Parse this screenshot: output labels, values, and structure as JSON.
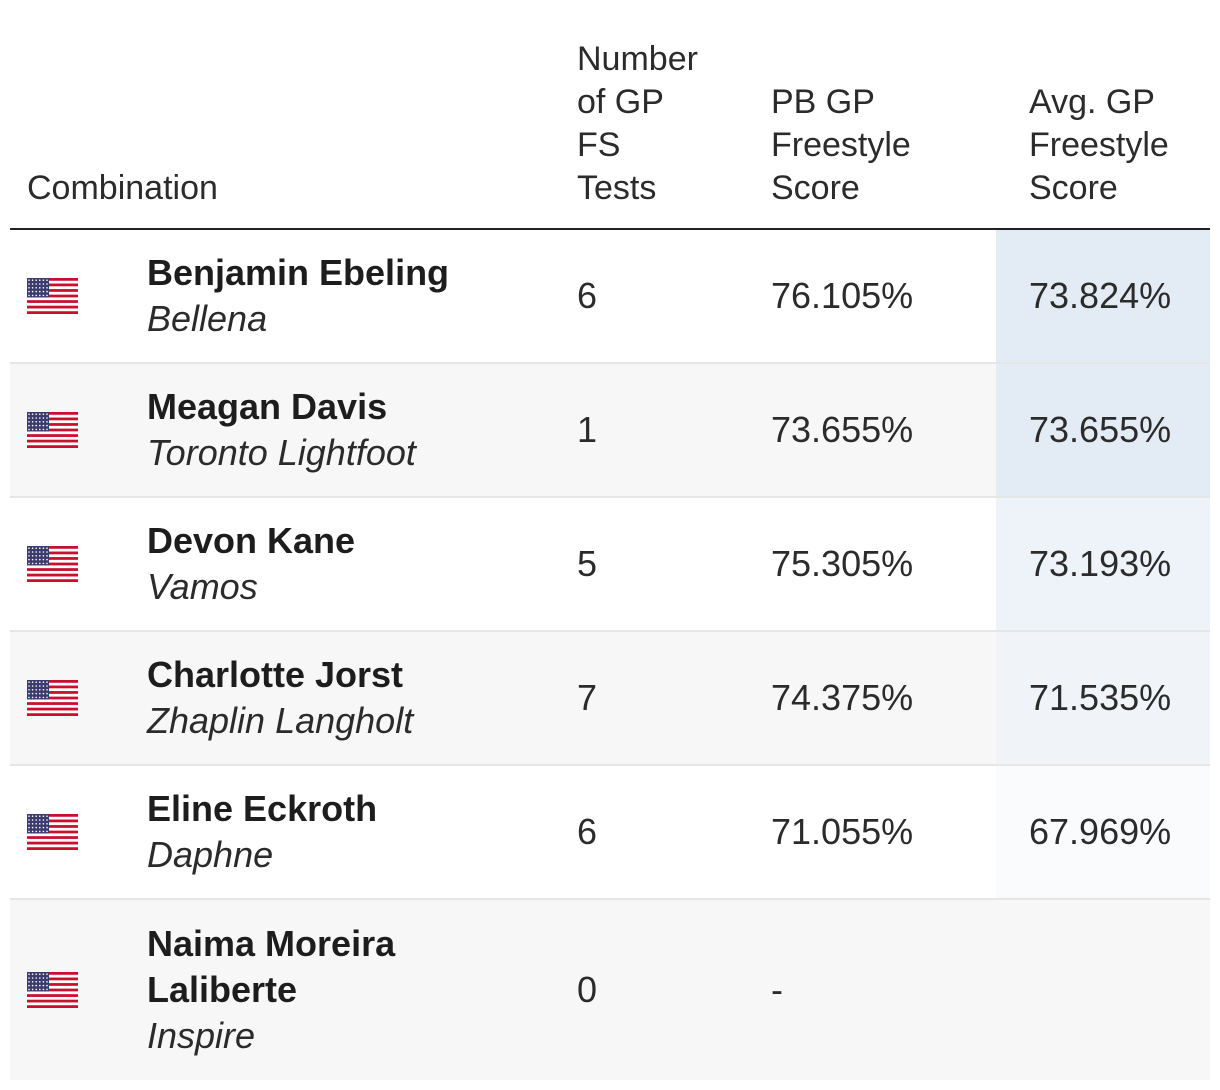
{
  "header": {
    "combination": "Combination",
    "tests": "Number\nof GP\nFS\nTests",
    "pb": "PB GP\nFreestyle\nScore",
    "avg": "Avg. GP\nFreestyle\nScore"
  },
  "rows": [
    {
      "rider": "Benjamin Ebeling",
      "horse": "Bellena",
      "tests": "6",
      "pb": "76.105%",
      "avg": "73.824%",
      "flag": "us-flag-icon",
      "avg_shade": "#e3ebf5"
    },
    {
      "rider": "Meagan Davis",
      "horse": "Toronto Lightfoot",
      "tests": "1",
      "pb": "73.655%",
      "avg": "73.655%",
      "flag": "us-flag-icon",
      "avg_shade": "#e3ebf5"
    },
    {
      "rider": "Devon Kane",
      "horse": "Vamos",
      "tests": "5",
      "pb": "75.305%",
      "avg": "73.193%",
      "flag": "us-flag-icon",
      "avg_shade": "#eef3f9"
    },
    {
      "rider": "Charlotte Jorst",
      "horse": "Zhaplin Langholt",
      "tests": "7",
      "pb": "74.375%",
      "avg": "71.535%",
      "flag": "us-flag-icon",
      "avg_shade": "#f0f4f9"
    },
    {
      "rider": "Eline Eckroth",
      "horse": "Daphne",
      "tests": "6",
      "pb": "71.055%",
      "avg": "67.969%",
      "flag": "us-flag-icon",
      "avg_shade": "#fafbfd"
    },
    {
      "rider": "Naima Moreira\nLaliberte",
      "horse": "Inspire",
      "tests": "0",
      "pb": "-",
      "avg": "",
      "flag": "us-flag-icon",
      "avg_shade": "#f7f7f7"
    }
  ]
}
